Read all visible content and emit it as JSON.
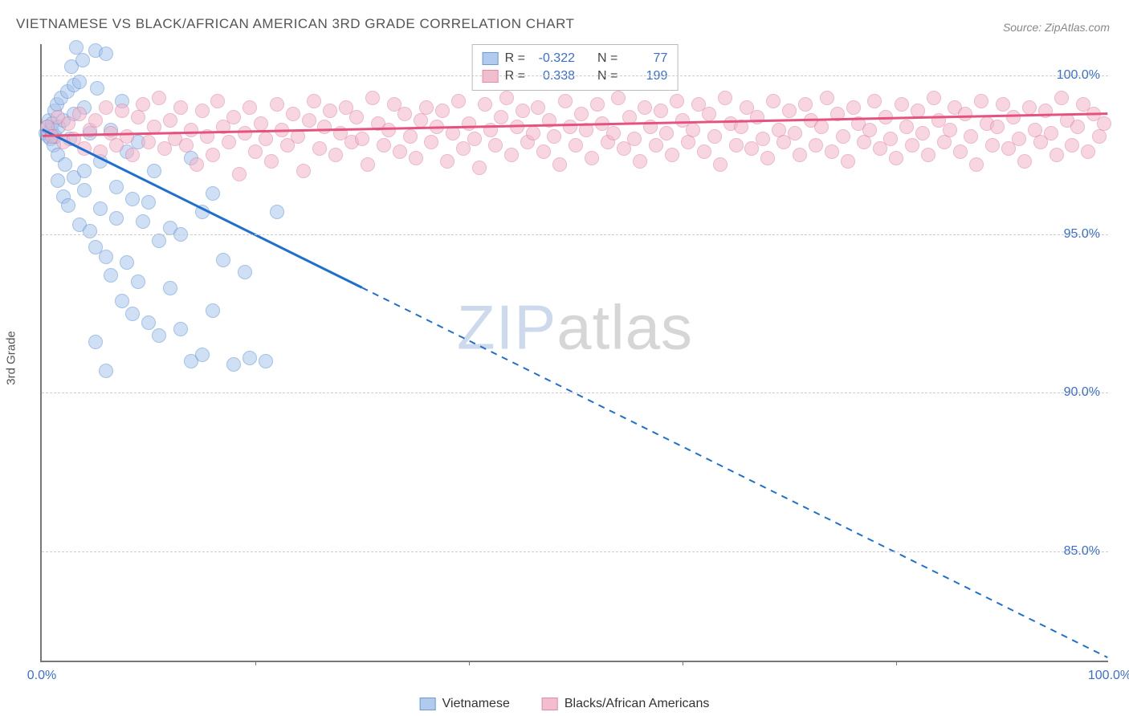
{
  "title": "VIETNAMESE VS BLACK/AFRICAN AMERICAN 3RD GRADE CORRELATION CHART",
  "source": "Source: ZipAtlas.com",
  "ylabel": "3rd Grade",
  "watermark_zip": "ZIP",
  "watermark_atlas": "atlas",
  "chart": {
    "type": "scatter",
    "background_color": "#ffffff",
    "grid_color": "#cccccc",
    "axis_color": "#777777",
    "xlim": [
      0,
      100
    ],
    "ylim": [
      81.5,
      101.0
    ],
    "yticks": [
      85.0,
      90.0,
      95.0,
      100.0
    ],
    "ytick_labels": [
      "85.0%",
      "90.0%",
      "95.0%",
      "100.0%"
    ],
    "xtick_majors": [
      0,
      100
    ],
    "xtick_labels": [
      "0.0%",
      "100.0%"
    ],
    "xtick_minors": [
      20,
      40,
      60,
      80
    ],
    "point_radius": 9,
    "point_stroke_width": 1.5,
    "trend_line_width": 3
  },
  "series": [
    {
      "name": "Vietnamese",
      "R": "-0.322",
      "N": "77",
      "fill": "#a8c6ec",
      "fill_opacity": 0.55,
      "stroke": "#5b8fd6",
      "trend_color": "#1f6fd0",
      "trend": {
        "x1": 0,
        "y1": 98.3,
        "x2_solid": 30,
        "y2_solid": 93.3,
        "x2": 100,
        "y2": 81.6
      },
      "points": [
        [
          0.4,
          98.2
        ],
        [
          0.5,
          98.4
        ],
        [
          0.6,
          98.1
        ],
        [
          0.7,
          98.6
        ],
        [
          0.8,
          98.0
        ],
        [
          0.9,
          98.3
        ],
        [
          1.0,
          98.5
        ],
        [
          1.1,
          97.8
        ],
        [
          1.2,
          98.9
        ],
        [
          1.3,
          98.1
        ],
        [
          1.4,
          99.1
        ],
        [
          1.5,
          97.5
        ],
        [
          1.6,
          98.4
        ],
        [
          1.8,
          99.3
        ],
        [
          2.0,
          98.6
        ],
        [
          2.2,
          97.2
        ],
        [
          2.4,
          99.5
        ],
        [
          2.6,
          98.0
        ],
        [
          2.8,
          100.3
        ],
        [
          3.0,
          99.7
        ],
        [
          3.2,
          100.9
        ],
        [
          3.5,
          99.8
        ],
        [
          3.8,
          100.5
        ],
        [
          4.0,
          99.0
        ],
        [
          4.5,
          98.2
        ],
        [
          5.0,
          100.8
        ],
        [
          5.2,
          99.6
        ],
        [
          5.5,
          97.3
        ],
        [
          6.0,
          100.7
        ],
        [
          6.5,
          98.3
        ],
        [
          7.0,
          96.5
        ],
        [
          7.5,
          99.2
        ],
        [
          8.0,
          97.6
        ],
        [
          8.5,
          96.1
        ],
        [
          9.0,
          97.9
        ],
        [
          9.5,
          95.4
        ],
        [
          10.0,
          96.0
        ],
        [
          10.5,
          97.0
        ],
        [
          11.0,
          94.8
        ],
        [
          12.0,
          95.2
        ],
        [
          13.0,
          95.0
        ],
        [
          14.0,
          97.4
        ],
        [
          15.0,
          95.7
        ],
        [
          16.0,
          96.3
        ],
        [
          1.5,
          96.7
        ],
        [
          2.0,
          96.2
        ],
        [
          2.5,
          95.9
        ],
        [
          3.0,
          96.8
        ],
        [
          3.5,
          95.3
        ],
        [
          4.0,
          96.4
        ],
        [
          4.5,
          95.1
        ],
        [
          5.0,
          94.6
        ],
        [
          5.5,
          95.8
        ],
        [
          6.0,
          94.3
        ],
        [
          6.5,
          93.7
        ],
        [
          7.0,
          95.5
        ],
        [
          7.5,
          92.9
        ],
        [
          8.0,
          94.1
        ],
        [
          8.5,
          92.5
        ],
        [
          9.0,
          93.5
        ],
        [
          10.0,
          92.2
        ],
        [
          11.0,
          91.8
        ],
        [
          12.0,
          93.3
        ],
        [
          13.0,
          92.0
        ],
        [
          14.0,
          91.0
        ],
        [
          15.0,
          91.2
        ],
        [
          16.0,
          92.6
        ],
        [
          18.0,
          90.9
        ],
        [
          19.5,
          91.1
        ],
        [
          21.0,
          91.0
        ],
        [
          17.0,
          94.2
        ],
        [
          19.0,
          93.8
        ],
        [
          5.0,
          91.6
        ],
        [
          6.0,
          90.7
        ],
        [
          3.0,
          98.8
        ],
        [
          4.0,
          97.0
        ],
        [
          22.0,
          95.7
        ]
      ]
    },
    {
      "name": "Blacks/African Americans",
      "R": "0.338",
      "N": "199",
      "fill": "#f2b6c9",
      "fill_opacity": 0.55,
      "stroke": "#e07fa2",
      "trend_color": "#e5527e",
      "trend": {
        "x1": 0,
        "y1": 98.1,
        "x2_solid": 100,
        "y2_solid": 98.8,
        "x2": 100,
        "y2": 98.8
      },
      "points": [
        [
          0.5,
          98.4
        ],
        [
          1.0,
          98.1
        ],
        [
          1.5,
          98.7
        ],
        [
          2.0,
          97.9
        ],
        [
          2.5,
          98.5
        ],
        [
          3.0,
          98.0
        ],
        [
          3.5,
          98.8
        ],
        [
          4.0,
          97.7
        ],
        [
          4.5,
          98.3
        ],
        [
          5.0,
          98.6
        ],
        [
          5.5,
          97.6
        ],
        [
          6.0,
          99.0
        ],
        [
          6.5,
          98.2
        ],
        [
          7.0,
          97.8
        ],
        [
          7.5,
          98.9
        ],
        [
          8.0,
          98.1
        ],
        [
          8.5,
          97.5
        ],
        [
          9.0,
          98.7
        ],
        [
          9.5,
          99.1
        ],
        [
          10.0,
          97.9
        ],
        [
          10.5,
          98.4
        ],
        [
          11.0,
          99.3
        ],
        [
          11.5,
          97.7
        ],
        [
          12.0,
          98.6
        ],
        [
          12.5,
          98.0
        ],
        [
          13.0,
          99.0
        ],
        [
          13.5,
          97.8
        ],
        [
          14.0,
          98.3
        ],
        [
          14.5,
          97.2
        ],
        [
          15.0,
          98.9
        ],
        [
          15.5,
          98.1
        ],
        [
          16.0,
          97.5
        ],
        [
          16.5,
          99.2
        ],
        [
          17.0,
          98.4
        ],
        [
          17.5,
          97.9
        ],
        [
          18.0,
          98.7
        ],
        [
          18.5,
          96.9
        ],
        [
          19.0,
          98.2
        ],
        [
          19.5,
          99.0
        ],
        [
          20.0,
          97.6
        ],
        [
          20.5,
          98.5
        ],
        [
          21.0,
          98.0
        ],
        [
          21.5,
          97.3
        ],
        [
          22.0,
          99.1
        ],
        [
          22.5,
          98.3
        ],
        [
          23.0,
          97.8
        ],
        [
          23.5,
          98.8
        ],
        [
          24.0,
          98.1
        ],
        [
          24.5,
          97.0
        ],
        [
          25.0,
          98.6
        ],
        [
          25.5,
          99.2
        ],
        [
          26.0,
          97.7
        ],
        [
          26.5,
          98.4
        ],
        [
          27.0,
          98.9
        ],
        [
          27.5,
          97.5
        ],
        [
          28.0,
          98.2
        ],
        [
          28.5,
          99.0
        ],
        [
          29.0,
          97.9
        ],
        [
          29.5,
          98.7
        ],
        [
          30.0,
          98.0
        ],
        [
          30.5,
          97.2
        ],
        [
          31.0,
          99.3
        ],
        [
          31.5,
          98.5
        ],
        [
          32.0,
          97.8
        ],
        [
          32.5,
          98.3
        ],
        [
          33.0,
          99.1
        ],
        [
          33.5,
          97.6
        ],
        [
          34.0,
          98.8
        ],
        [
          34.5,
          98.1
        ],
        [
          35.0,
          97.4
        ],
        [
          35.5,
          98.6
        ],
        [
          36.0,
          99.0
        ],
        [
          36.5,
          97.9
        ],
        [
          37.0,
          98.4
        ],
        [
          37.5,
          98.9
        ],
        [
          38.0,
          97.3
        ],
        [
          38.5,
          98.2
        ],
        [
          39.0,
          99.2
        ],
        [
          39.5,
          97.7
        ],
        [
          40.0,
          98.5
        ],
        [
          40.5,
          98.0
        ],
        [
          41.0,
          97.1
        ],
        [
          41.5,
          99.1
        ],
        [
          42.0,
          98.3
        ],
        [
          42.5,
          97.8
        ],
        [
          43.0,
          98.7
        ],
        [
          43.5,
          99.3
        ],
        [
          44.0,
          97.5
        ],
        [
          44.5,
          98.4
        ],
        [
          45.0,
          98.9
        ],
        [
          45.5,
          97.9
        ],
        [
          46.0,
          98.2
        ],
        [
          46.5,
          99.0
        ],
        [
          47.0,
          97.6
        ],
        [
          47.5,
          98.6
        ],
        [
          48.0,
          98.1
        ],
        [
          48.5,
          97.2
        ],
        [
          49.0,
          99.2
        ],
        [
          49.5,
          98.4
        ],
        [
          50.0,
          97.8
        ],
        [
          50.5,
          98.8
        ],
        [
          51.0,
          98.3
        ],
        [
          51.5,
          97.4
        ],
        [
          52.0,
          99.1
        ],
        [
          52.5,
          98.5
        ],
        [
          53.0,
          97.9
        ],
        [
          53.5,
          98.2
        ],
        [
          54.0,
          99.3
        ],
        [
          54.5,
          97.7
        ],
        [
          55.0,
          98.7
        ],
        [
          55.5,
          98.0
        ],
        [
          56.0,
          97.3
        ],
        [
          56.5,
          99.0
        ],
        [
          57.0,
          98.4
        ],
        [
          57.5,
          97.8
        ],
        [
          58.0,
          98.9
        ],
        [
          58.5,
          98.2
        ],
        [
          59.0,
          97.5
        ],
        [
          59.5,
          99.2
        ],
        [
          60.0,
          98.6
        ],
        [
          60.5,
          97.9
        ],
        [
          61.0,
          98.3
        ],
        [
          61.5,
          99.1
        ],
        [
          62.0,
          97.6
        ],
        [
          62.5,
          98.8
        ],
        [
          63.0,
          98.1
        ],
        [
          63.5,
          97.2
        ],
        [
          64.0,
          99.3
        ],
        [
          64.5,
          98.5
        ],
        [
          65.0,
          97.8
        ],
        [
          65.5,
          98.4
        ],
        [
          66.0,
          99.0
        ],
        [
          66.5,
          97.7
        ],
        [
          67.0,
          98.7
        ],
        [
          67.5,
          98.0
        ],
        [
          68.0,
          97.4
        ],
        [
          68.5,
          99.2
        ],
        [
          69.0,
          98.3
        ],
        [
          69.5,
          97.9
        ],
        [
          70.0,
          98.9
        ],
        [
          70.5,
          98.2
        ],
        [
          71.0,
          97.5
        ],
        [
          71.5,
          99.1
        ],
        [
          72.0,
          98.6
        ],
        [
          72.5,
          97.8
        ],
        [
          73.0,
          98.4
        ],
        [
          73.5,
          99.3
        ],
        [
          74.0,
          97.6
        ],
        [
          74.5,
          98.8
        ],
        [
          75.0,
          98.1
        ],
        [
          75.5,
          97.3
        ],
        [
          76.0,
          99.0
        ],
        [
          76.5,
          98.5
        ],
        [
          77.0,
          97.9
        ],
        [
          77.5,
          98.3
        ],
        [
          78.0,
          99.2
        ],
        [
          78.5,
          97.7
        ],
        [
          79.0,
          98.7
        ],
        [
          79.5,
          98.0
        ],
        [
          80.0,
          97.4
        ],
        [
          80.5,
          99.1
        ],
        [
          81.0,
          98.4
        ],
        [
          81.5,
          97.8
        ],
        [
          82.0,
          98.9
        ],
        [
          82.5,
          98.2
        ],
        [
          83.0,
          97.5
        ],
        [
          83.5,
          99.3
        ],
        [
          84.0,
          98.6
        ],
        [
          84.5,
          97.9
        ],
        [
          85.0,
          98.3
        ],
        [
          85.5,
          99.0
        ],
        [
          86.0,
          97.6
        ],
        [
          86.5,
          98.8
        ],
        [
          87.0,
          98.1
        ],
        [
          87.5,
          97.2
        ],
        [
          88.0,
          99.2
        ],
        [
          88.5,
          98.5
        ],
        [
          89.0,
          97.8
        ],
        [
          89.5,
          98.4
        ],
        [
          90.0,
          99.1
        ],
        [
          90.5,
          97.7
        ],
        [
          91.0,
          98.7
        ],
        [
          91.5,
          98.0
        ],
        [
          92.0,
          97.3
        ],
        [
          92.5,
          99.0
        ],
        [
          93.0,
          98.3
        ],
        [
          93.5,
          97.9
        ],
        [
          94.0,
          98.9
        ],
        [
          94.5,
          98.2
        ],
        [
          95.0,
          97.5
        ],
        [
          95.5,
          99.3
        ],
        [
          96.0,
          98.6
        ],
        [
          96.5,
          97.8
        ],
        [
          97.0,
          98.4
        ],
        [
          97.5,
          99.1
        ],
        [
          98.0,
          97.6
        ],
        [
          98.5,
          98.8
        ],
        [
          99.0,
          98.1
        ],
        [
          99.5,
          98.5
        ]
      ]
    }
  ],
  "legend": {
    "r_label": "R =",
    "n_label": "N ="
  },
  "bottom_legend": {
    "series1_label": "Vietnamese",
    "series2_label": "Blacks/African Americans"
  }
}
